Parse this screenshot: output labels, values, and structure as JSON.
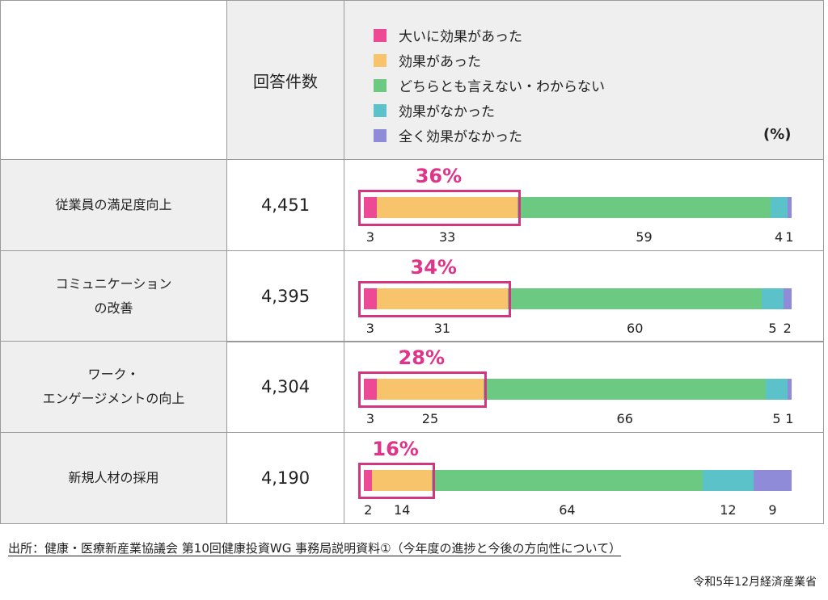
{
  "header": {
    "count_label": "回答件数",
    "unit": "(%)"
  },
  "legend": [
    {
      "label": "大いに効果があった",
      "color": "#ec4a95"
    },
    {
      "label": "効果があった",
      "color": "#f7c46c"
    },
    {
      "label": "どちらとも言えない・わからない",
      "color": "#6bc982"
    },
    {
      "label": "効果がなかった",
      "color": "#5bc2ca"
    },
    {
      "label": "全く効果がなかった",
      "color": "#8f8bd8"
    }
  ],
  "chart_data": {
    "type": "bar",
    "stacked": true,
    "orientation": "horizontal",
    "unit": "%",
    "series_names": [
      "大いに効果があった",
      "効果があった",
      "どちらとも言えない・わからない",
      "効果がなかった",
      "全く効果がなかった"
    ],
    "rows": [
      {
        "label": "従業員の満足度向上",
        "count": "4,451",
        "values": [
          3,
          33,
          59,
          4,
          1
        ],
        "highlight": "36%"
      },
      {
        "label": "コミュニケーション\nの改善",
        "count": "4,395",
        "values": [
          3,
          31,
          60,
          5,
          2
        ],
        "highlight": "34%"
      },
      {
        "label": "ワーク・\nエンゲージメントの向上",
        "count": "4,304",
        "values": [
          3,
          25,
          66,
          5,
          1
        ],
        "highlight": "28%"
      },
      {
        "label": "新規人材の採用",
        "count": "4,190",
        "values": [
          2,
          14,
          64,
          12,
          9
        ],
        "highlight": "16%"
      }
    ]
  },
  "footer": {
    "source": "出所：健康・医療新産業協議会 第10回健康投資WG 事務局説明資料①（今年度の進捗と今後の方向性について）",
    "org": "令和5年12月経済産業省"
  }
}
